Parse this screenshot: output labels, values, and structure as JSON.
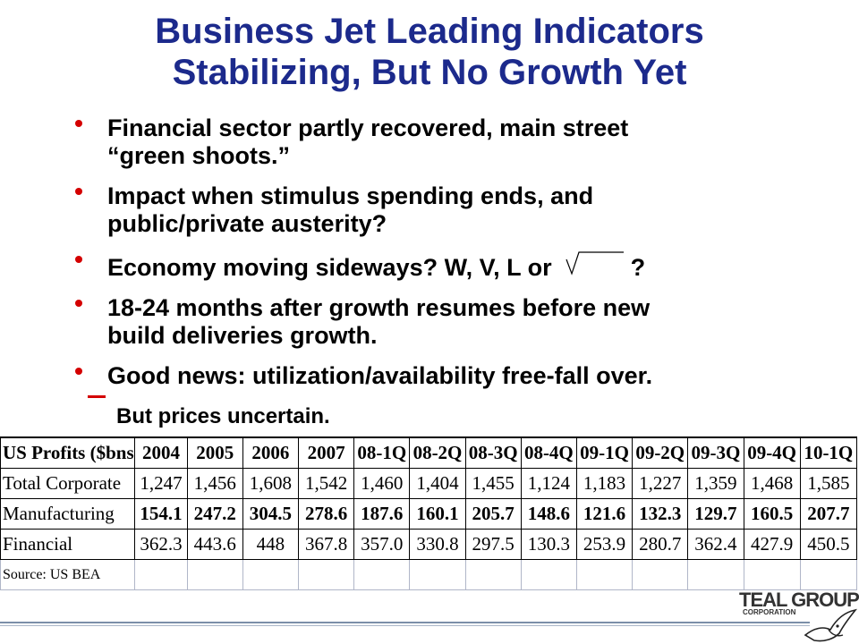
{
  "title_line1": "Business Jet Leading Indicators",
  "title_line2": "Stabilizing, But No Growth Yet",
  "bullets": [
    {
      "line1": "Financial sector partly recovered, main street",
      "line2": "“green shoots.”"
    },
    {
      "line1": "Impact when stimulus spending ends, and",
      "line2": "public/private austerity?"
    },
    {
      "line1a": "Economy moving sideways?  W, V, L or",
      "line1b": "?"
    },
    {
      "line1": "18-24 months after growth resumes before new",
      "line2": "build deliveries growth."
    },
    {
      "line1": "Good news: utilization/availability free-fall over."
    }
  ],
  "sub_bullet": "But prices uncertain.",
  "table": {
    "headers": [
      "US Profits ($bns)",
      "2004",
      "2005",
      "2006",
      "2007",
      "08-1Q",
      "08-2Q",
      "08-3Q",
      "08-4Q",
      "09-1Q",
      "09-2Q",
      "09-3Q",
      "09-4Q",
      "10-1Q"
    ],
    "rows": [
      {
        "label": "Total Corporate",
        "values": [
          "1,247",
          "1,456",
          "1,608",
          "1,542",
          "1,460",
          "1,404",
          "1,455",
          "1,124",
          "1,183",
          "1,227",
          "1,359",
          "1,468",
          "1,585"
        ]
      },
      {
        "label": "Manufacturing",
        "values": [
          "154.1",
          "247.2",
          "304.5",
          "278.6",
          "187.6",
          "160.1",
          "205.7",
          "148.6",
          "121.6",
          "132.3",
          "129.7",
          "160.5",
          "207.7"
        ]
      },
      {
        "label": "Financial",
        "values": [
          "362.3",
          "443.6",
          "448",
          "367.8",
          "357.0",
          "330.8",
          "297.5",
          "130.3",
          "253.9",
          "280.7",
          "362.4",
          "427.9",
          "450.5"
        ]
      }
    ],
    "source": "Source: US BEA"
  },
  "logo": {
    "name": "TEAL GROUP",
    "sub": "CORPORATION"
  },
  "colors": {
    "title": "#1c2a8c",
    "bullet": "#d40000"
  }
}
